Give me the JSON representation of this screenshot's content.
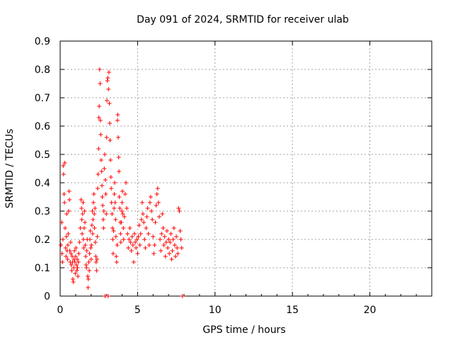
{
  "chart_data": {
    "type": "scatter",
    "title": "Day 091 of 2024, SRMTID for receiver ulab",
    "xlabel": "GPS time / hours",
    "ylabel": "SRMTID / TECUs",
    "xlim": [
      0,
      24
    ],
    "ylim": [
      0,
      0.9
    ],
    "grid": true,
    "marker": "+",
    "x_ticks": [
      0,
      5,
      10,
      15,
      20
    ],
    "x_tick_labels": [
      "0",
      "5",
      "10",
      "15",
      "20"
    ],
    "y_ticks": [
      0,
      0.1,
      0.2,
      0.3,
      0.4,
      0.5,
      0.6,
      0.7,
      0.8,
      0.9
    ],
    "y_tick_labels": [
      "0",
      "0.1",
      "0.2",
      "0.3",
      "0.4",
      "0.5",
      "0.6",
      "0.7",
      "0.8",
      "0.9"
    ],
    "series": [
      {
        "name": "ulab",
        "color": "#ff0000",
        "points": [
          [
            0.05,
            0.18
          ],
          [
            0.1,
            0.26
          ],
          [
            0.12,
            0.15
          ],
          [
            0.15,
            0.12
          ],
          [
            0.18,
            0.2
          ],
          [
            0.2,
            0.46
          ],
          [
            0.22,
            0.43
          ],
          [
            0.25,
            0.36
          ],
          [
            0.28,
            0.33
          ],
          [
            0.3,
            0.47
          ],
          [
            0.32,
            0.24
          ],
          [
            0.35,
            0.17
          ],
          [
            0.38,
            0.14
          ],
          [
            0.4,
            0.21
          ],
          [
            0.42,
            0.29
          ],
          [
            0.45,
            0.16
          ],
          [
            0.48,
            0.13
          ],
          [
            0.5,
            0.18
          ],
          [
            0.52,
            0.22
          ],
          [
            0.55,
            0.3
          ],
          [
            0.58,
            0.37
          ],
          [
            0.6,
            0.34
          ],
          [
            0.62,
            0.16
          ],
          [
            0.65,
            0.12
          ],
          [
            0.68,
            0.19
          ],
          [
            0.7,
            0.15
          ],
          [
            0.72,
            0.11
          ],
          [
            0.75,
            0.09
          ],
          [
            0.78,
            0.14
          ],
          [
            0.8,
            0.12
          ],
          [
            0.82,
            0.06
          ],
          [
            0.85,
            0.05
          ],
          [
            0.88,
            0.1
          ],
          [
            0.9,
            0.13
          ],
          [
            0.92,
            0.16
          ],
          [
            0.95,
            0.12
          ],
          [
            0.98,
            0.08
          ],
          [
            1.0,
            0.14
          ],
          [
            1.02,
            0.17
          ],
          [
            1.05,
            0.11
          ],
          [
            1.08,
            0.09
          ],
          [
            1.1,
            0.13
          ],
          [
            1.12,
            0.1
          ],
          [
            1.15,
            0.07
          ],
          [
            1.18,
            0.12
          ],
          [
            1.2,
            0.15
          ],
          [
            1.25,
            0.19
          ],
          [
            1.3,
            0.24
          ],
          [
            1.35,
            0.34
          ],
          [
            1.38,
            0.31
          ],
          [
            1.4,
            0.27
          ],
          [
            1.42,
            0.22
          ],
          [
            1.45,
            0.29
          ],
          [
            1.48,
            0.33
          ],
          [
            1.5,
            0.2
          ],
          [
            1.52,
            0.17
          ],
          [
            1.55,
            0.24
          ],
          [
            1.58,
            0.3
          ],
          [
            1.6,
            0.26
          ],
          [
            1.62,
            0.18
          ],
          [
            1.65,
            0.14
          ],
          [
            1.68,
            0.11
          ],
          [
            1.7,
            0.1
          ],
          [
            1.72,
            0.16
          ],
          [
            1.75,
            0.2
          ],
          [
            1.78,
            0.07
          ],
          [
            1.8,
            0.03
          ],
          [
            1.82,
            0.06
          ],
          [
            1.85,
            0.12
          ],
          [
            1.88,
            0.09
          ],
          [
            1.9,
            0.15
          ],
          [
            1.92,
            0.2
          ],
          [
            1.95,
            0.23
          ],
          [
            1.98,
            0.17
          ],
          [
            2.0,
            0.13
          ],
          [
            2.02,
            0.18
          ],
          [
            2.05,
            0.25
          ],
          [
            2.08,
            0.3
          ],
          [
            2.1,
            0.22
          ],
          [
            2.12,
            0.27
          ],
          [
            2.15,
            0.33
          ],
          [
            2.18,
            0.36
          ],
          [
            2.2,
            0.29
          ],
          [
            2.22,
            0.24
          ],
          [
            2.25,
            0.31
          ],
          [
            2.28,
            0.19
          ],
          [
            2.3,
            0.14
          ],
          [
            2.32,
            0.12
          ],
          [
            2.35,
            0.09
          ],
          [
            2.38,
            0.13
          ],
          [
            2.4,
            0.21
          ],
          [
            2.42,
            0.38
          ],
          [
            2.45,
            0.43
          ],
          [
            2.48,
            0.52
          ],
          [
            2.5,
            0.63
          ],
          [
            2.52,
            0.67
          ],
          [
            2.55,
            0.8
          ],
          [
            2.58,
            0.75
          ],
          [
            2.6,
            0.62
          ],
          [
            2.62,
            0.57
          ],
          [
            2.65,
            0.48
          ],
          [
            2.68,
            0.44
          ],
          [
            2.7,
            0.39
          ],
          [
            2.72,
            0.35
          ],
          [
            2.75,
            0.32
          ],
          [
            2.78,
            0.27
          ],
          [
            2.8,
            0.24
          ],
          [
            2.82,
            0.3
          ],
          [
            2.85,
            0.45
          ],
          [
            2.88,
            0.5
          ],
          [
            2.9,
            0.0
          ],
          [
            2.92,
            0.41
          ],
          [
            2.95,
            0.36
          ],
          [
            2.98,
            0.29
          ],
          [
            3.0,
            0.56
          ],
          [
            3.02,
            0.69
          ],
          [
            3.05,
            0.76
          ],
          [
            3.08,
            0.77
          ],
          [
            3.1,
            0.0
          ],
          [
            3.12,
            0.73
          ],
          [
            3.15,
            0.79
          ],
          [
            3.18,
            0.68
          ],
          [
            3.2,
            0.61
          ],
          [
            3.22,
            0.55
          ],
          [
            3.25,
            0.48
          ],
          [
            3.28,
            0.42
          ],
          [
            3.3,
            0.38
          ],
          [
            3.32,
            0.33
          ],
          [
            3.35,
            0.29
          ],
          [
            3.38,
            0.24
          ],
          [
            3.4,
            0.2
          ],
          [
            3.42,
            0.15
          ],
          [
            3.45,
            0.23
          ],
          [
            3.48,
            0.31
          ],
          [
            3.5,
            0.36
          ],
          [
            3.52,
            0.4
          ],
          [
            3.55,
            0.33
          ],
          [
            3.58,
            0.27
          ],
          [
            3.6,
            0.21
          ],
          [
            3.62,
            0.14
          ],
          [
            3.65,
            0.12
          ],
          [
            3.68,
            0.18
          ],
          [
            3.7,
            0.62
          ],
          [
            3.72,
            0.64
          ],
          [
            3.75,
            0.56
          ],
          [
            3.78,
            0.49
          ],
          [
            3.8,
            0.44
          ],
          [
            3.82,
            0.35
          ],
          [
            3.85,
            0.31
          ],
          [
            3.88,
            0.26
          ],
          [
            3.9,
            0.22
          ],
          [
            3.92,
            0.19
          ],
          [
            3.95,
            0.26
          ],
          [
            3.98,
            0.3
          ],
          [
            4.0,
            0.33
          ],
          [
            4.02,
            0.37
          ],
          [
            4.05,
            0.29
          ],
          [
            4.08,
            0.24
          ],
          [
            4.1,
            0.2
          ],
          [
            4.15,
            0.28
          ],
          [
            4.2,
            0.36
          ],
          [
            4.25,
            0.4
          ],
          [
            4.3,
            0.31
          ],
          [
            4.35,
            0.22
          ],
          [
            4.4,
            0.17
          ],
          [
            4.45,
            0.2
          ],
          [
            4.5,
            0.24
          ],
          [
            4.55,
            0.19
          ],
          [
            4.6,
            0.16
          ],
          [
            4.65,
            0.21
          ],
          [
            4.7,
            0.18
          ],
          [
            4.75,
            0.12
          ],
          [
            4.8,
            0.22
          ],
          [
            4.85,
            0.19
          ],
          [
            4.9,
            0.17
          ],
          [
            4.95,
            0.2
          ],
          [
            5.0,
            0.15
          ],
          [
            5.05,
            0.21
          ],
          [
            5.1,
            0.25
          ],
          [
            5.15,
            0.18
          ],
          [
            5.2,
            0.22
          ],
          [
            5.25,
            0.27
          ],
          [
            5.3,
            0.33
          ],
          [
            5.35,
            0.29
          ],
          [
            5.4,
            0.26
          ],
          [
            5.45,
            0.2
          ],
          [
            5.5,
            0.17
          ],
          [
            5.55,
            0.24
          ],
          [
            5.6,
            0.28
          ],
          [
            5.65,
            0.31
          ],
          [
            5.7,
            0.22
          ],
          [
            5.75,
            0.18
          ],
          [
            5.8,
            0.33
          ],
          [
            5.85,
            0.35
          ],
          [
            5.9,
            0.3
          ],
          [
            5.95,
            0.27
          ],
          [
            6.0,
            0.21
          ],
          [
            6.05,
            0.15
          ],
          [
            6.1,
            0.18
          ],
          [
            6.15,
            0.26
          ],
          [
            6.2,
            0.32
          ],
          [
            6.25,
            0.36
          ],
          [
            6.3,
            0.38
          ],
          [
            6.35,
            0.33
          ],
          [
            6.4,
            0.28
          ],
          [
            6.45,
            0.2
          ],
          [
            6.5,
            0.16
          ],
          [
            6.55,
            0.22
          ],
          [
            6.6,
            0.29
          ],
          [
            6.65,
            0.24
          ],
          [
            6.7,
            0.18
          ],
          [
            6.75,
            0.21
          ],
          [
            6.8,
            0.14
          ],
          [
            6.85,
            0.19
          ],
          [
            6.9,
            0.23
          ],
          [
            6.95,
            0.17
          ],
          [
            7.0,
            0.2
          ],
          [
            7.05,
            0.15
          ],
          [
            7.1,
            0.19
          ],
          [
            7.15,
            0.22
          ],
          [
            7.2,
            0.13
          ],
          [
            7.25,
            0.16
          ],
          [
            7.3,
            0.2
          ],
          [
            7.35,
            0.24
          ],
          [
            7.4,
            0.18
          ],
          [
            7.45,
            0.14
          ],
          [
            7.5,
            0.21
          ],
          [
            7.55,
            0.17
          ],
          [
            7.6,
            0.15
          ],
          [
            7.65,
            0.31
          ],
          [
            7.7,
            0.3
          ],
          [
            7.75,
            0.23
          ],
          [
            7.8,
            0.2
          ],
          [
            7.85,
            0.17
          ],
          [
            7.9,
            0.0
          ]
        ]
      }
    ]
  }
}
